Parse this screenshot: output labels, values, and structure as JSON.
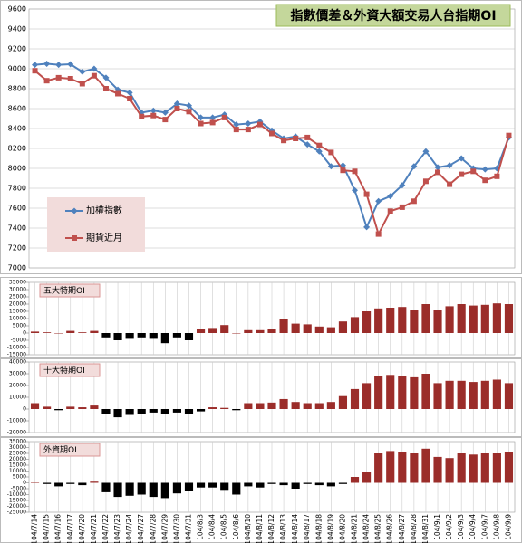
{
  "chart_data": [
    {
      "type": "line",
      "title": "指數價差＆外資大額交易人台指期OI",
      "ylim": [
        7000,
        9600
      ],
      "yticks": [
        7000,
        7200,
        7400,
        7600,
        7800,
        8000,
        8200,
        8400,
        8600,
        8800,
        9000,
        9200,
        9400,
        9600
      ],
      "grid": "y",
      "series": [
        {
          "name": "加權指數",
          "color": "#4f81bd",
          "marker": "diamond",
          "values": [
            9040,
            9050,
            9040,
            9045,
            8970,
            9000,
            8910,
            8790,
            8760,
            8560,
            8580,
            8560,
            8650,
            8630,
            8510,
            8510,
            8540,
            8440,
            8450,
            8470,
            8380,
            8300,
            8320,
            8240,
            8170,
            8020,
            8030,
            7780,
            7410,
            7670,
            7720,
            7830,
            8020,
            8170,
            8010,
            8030,
            8100,
            8000,
            7990,
            8000,
            8310
          ]
        },
        {
          "name": "期貨近月",
          "color": "#c0504d",
          "marker": "square",
          "values": [
            8980,
            8880,
            8910,
            8900,
            8850,
            8930,
            8800,
            8750,
            8700,
            8520,
            8530,
            8490,
            8600,
            8570,
            8450,
            8460,
            8510,
            8390,
            8390,
            8440,
            8350,
            8280,
            8300,
            8310,
            8230,
            8160,
            7980,
            7970,
            7740,
            7340,
            7570,
            7610,
            7670,
            7870,
            7960,
            7840,
            7940,
            7970,
            7880,
            7920,
            8330
          ]
        }
      ]
    },
    {
      "type": "bar",
      "title": "五大特期OI",
      "positive_color": "#9b2d2a",
      "negative_color": "#000000",
      "grid": "x",
      "ylim": [
        -15000,
        35000
      ],
      "yticks": [
        -15000,
        -10000,
        -5000,
        0,
        5000,
        10000,
        15000,
        20000,
        25000,
        30000,
        35000
      ],
      "values": [
        1000,
        500,
        0,
        1500,
        500,
        1500,
        -3000,
        -5000,
        -4000,
        -3000,
        -4000,
        -7000,
        -3000,
        -5000,
        3000,
        3500,
        5500,
        0,
        2000,
        2000,
        3000,
        10000,
        6500,
        6000,
        4500,
        4000,
        8000,
        11000,
        15000,
        17000,
        17500,
        18000,
        16000,
        20000,
        16000,
        18500,
        20000,
        19000,
        19500,
        20500,
        20000
      ]
    },
    {
      "type": "bar",
      "title": "十大特期OI",
      "positive_color": "#9b2d2a",
      "negative_color": "#000000",
      "grid": "x",
      "ylim": [
        -20000,
        40000
      ],
      "yticks": [
        -20000,
        -10000,
        0,
        10000,
        20000,
        30000,
        40000
      ],
      "values": [
        5000,
        2000,
        -1000,
        2000,
        1500,
        3000,
        -4000,
        -7000,
        -5000,
        -4000,
        -3000,
        -4000,
        -3000,
        -4000,
        -2000,
        1500,
        1000,
        -1000,
        5000,
        5000,
        5500,
        8500,
        6000,
        5000,
        5000,
        6000,
        11000,
        17000,
        22000,
        28000,
        29000,
        28000,
        27000,
        30000,
        22000,
        24000,
        24000,
        23000,
        24000,
        25000,
        22000
      ]
    },
    {
      "type": "bar",
      "title": "外資期OI",
      "positive_color": "#9b2d2a",
      "negative_color": "#000000",
      "grid": "x",
      "ylim": [
        -25000,
        35000
      ],
      "yticks": [
        -25000,
        -20000,
        -15000,
        -10000,
        -5000,
        0,
        5000,
        10000,
        15000,
        20000,
        25000,
        30000,
        35000
      ],
      "values": [
        0,
        -1000,
        -3000,
        -1000,
        -2000,
        1000,
        -8000,
        -12000,
        -11000,
        -10000,
        -12000,
        -13000,
        -9000,
        -7000,
        -4000,
        -4000,
        -6000,
        -10000,
        -3000,
        -4000,
        -1000,
        -2000,
        -5000,
        -1000,
        -2000,
        -3000,
        -1000,
        5000,
        9000,
        25000,
        27000,
        26000,
        25000,
        29000,
        22000,
        21000,
        25000,
        24000,
        25000,
        25000,
        26000
      ],
      "categories": [
        "104/7/14",
        "104/7/15",
        "104/7/16",
        "104/7/17",
        "104/7/20",
        "104/7/21",
        "104/7/22",
        "104/7/23",
        "104/7/24",
        "104/7/27",
        "104/7/28",
        "104/7/29",
        "104/7/30",
        "104/7/31",
        "104/8/3",
        "104/8/4",
        "104/8/5",
        "104/8/6",
        "104/8/10",
        "104/8/11",
        "104/8/12",
        "104/8/13",
        "104/8/14",
        "104/8/17",
        "104/8/18",
        "104/8/19",
        "104/8/20",
        "104/8/21",
        "104/8/24",
        "104/8/25",
        "104/8/26",
        "104/8/27",
        "104/8/28",
        "104/8/31",
        "104/9/1",
        "104/9/2",
        "104/9/3",
        "104/9/4",
        "104/9/7",
        "104/9/8",
        "104/9/9"
      ]
    }
  ]
}
